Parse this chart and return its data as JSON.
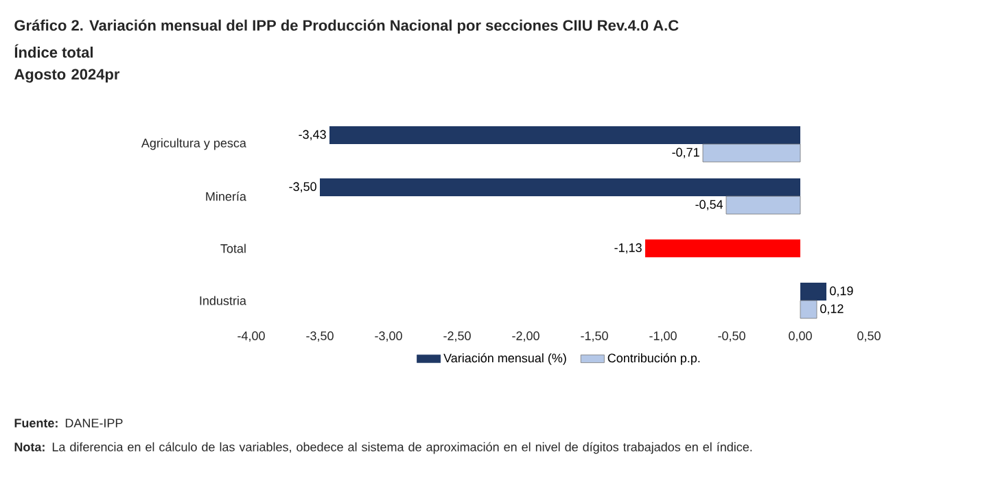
{
  "chart_data": {
    "type": "bar",
    "orientation": "horizontal",
    "title": "Gráfico 2. Variación mensual del IPP de Producción Nacional por secciones CIIU Rev.4.0 A.C",
    "subtitle": "Índice total",
    "categories": [
      "Agricultura y pesca",
      "Minería",
      "Total",
      "Industria"
    ],
    "series": [
      {
        "name": "Variación mensual (%)",
        "color": "#1f3864",
        "colors": [
          "#1f3864",
          "#1f3864",
          "#ff0000",
          "#1f3864"
        ],
        "values": [
          -3.43,
          -3.5,
          -1.13,
          0.19
        ],
        "value_labels": [
          "-3,43",
          "-3,50",
          "-1,13",
          "0,19"
        ]
      },
      {
        "name": "Contribución p.p.",
        "color": "#b4c7e7",
        "values": [
          -0.71,
          -0.54,
          null,
          0.12
        ],
        "value_labels": [
          "-0,71",
          "-0,54",
          null,
          "0,12"
        ]
      }
    ],
    "xlim": [
      -4,
      0.5
    ],
    "xticks": [
      {
        "value": -4,
        "label": "-4,00"
      },
      {
        "value": -3.5,
        "label": "-3,50"
      },
      {
        "value": -3,
        "label": "-3,00"
      },
      {
        "value": -2.5,
        "label": "-2,50"
      },
      {
        "value": -2,
        "label": "-2,00"
      },
      {
        "value": -1.5,
        "label": "-1,50"
      },
      {
        "value": -1,
        "label": "-1,00"
      },
      {
        "value": -0.5,
        "label": "-0,50"
      },
      {
        "value": 0,
        "label": "0,00"
      },
      {
        "value": 0.5,
        "label": "0,50"
      }
    ],
    "legend": "bottom",
    "grid": false,
    "annotations": [
      "Agosto 2024pr",
      "**Fuente:** DANE-IPP",
      "**Nota:** La diferencia en el cálculo de las variables, obedece al sistema de aproximación en el nivel de dígitos trabajados en el índice."
    ]
  }
}
